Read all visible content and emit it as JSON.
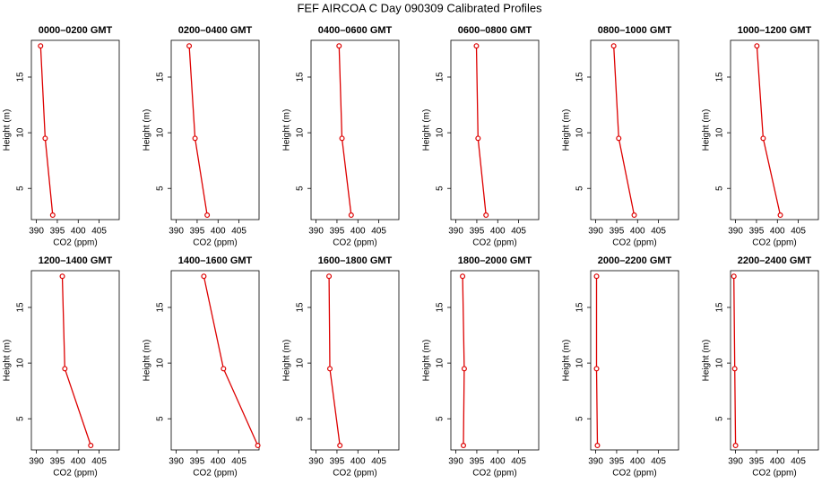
{
  "title": "FEF AIRCOA C  Day 090309  Calibrated Profiles",
  "chart_data": [
    {
      "type": "line",
      "title": "0000–0200 GMT",
      "xlabel": "CO2 (ppm)",
      "ylabel": "Height (m)",
      "color": "#dd0000",
      "x": [
        393.9,
        392.1,
        391.0
      ],
      "values": [
        2.6,
        9.5,
        17.8
      ],
      "xlim": [
        388.8,
        409.8
      ],
      "ylim": [
        2.2,
        18.3
      ],
      "xticks": [
        390,
        395,
        400,
        405
      ],
      "yticks": [
        5,
        10,
        15
      ]
    },
    {
      "type": "line",
      "title": "0200–0400 GMT",
      "xlabel": "CO2 (ppm)",
      "ylabel": "Height (m)",
      "color": "#dd0000",
      "x": [
        397.4,
        394.5,
        393.1
      ],
      "values": [
        2.6,
        9.5,
        17.8
      ],
      "xlim": [
        388.8,
        409.8
      ],
      "ylim": [
        2.2,
        18.3
      ],
      "xticks": [
        390,
        395,
        400,
        405
      ],
      "yticks": [
        5,
        10,
        15
      ]
    },
    {
      "type": "line",
      "title": "0400–0600 GMT",
      "xlabel": "CO2 (ppm)",
      "ylabel": "Height (m)",
      "color": "#dd0000",
      "x": [
        398.4,
        396.2,
        395.5
      ],
      "values": [
        2.6,
        9.5,
        17.8
      ],
      "xlim": [
        388.8,
        409.8
      ],
      "ylim": [
        2.2,
        18.3
      ],
      "xticks": [
        390,
        395,
        400,
        405
      ],
      "yticks": [
        5,
        10,
        15
      ]
    },
    {
      "type": "line",
      "title": "0600–0800 GMT",
      "xlabel": "CO2 (ppm)",
      "ylabel": "Height (m)",
      "color": "#dd0000",
      "x": [
        397.2,
        395.3,
        394.9
      ],
      "values": [
        2.6,
        9.5,
        17.8
      ],
      "xlim": [
        388.8,
        409.8
      ],
      "ylim": [
        2.2,
        18.3
      ],
      "xticks": [
        390,
        395,
        400,
        405
      ],
      "yticks": [
        5,
        10,
        15
      ]
    },
    {
      "type": "line",
      "title": "0800–1000 GMT",
      "xlabel": "CO2 (ppm)",
      "ylabel": "Height (m)",
      "color": "#dd0000",
      "x": [
        399.2,
        395.5,
        394.3
      ],
      "values": [
        2.6,
        9.5,
        17.8
      ],
      "xlim": [
        388.8,
        409.8
      ],
      "ylim": [
        2.2,
        18.3
      ],
      "xticks": [
        390,
        395,
        400,
        405
      ],
      "yticks": [
        5,
        10,
        15
      ]
    },
    {
      "type": "line",
      "title": "1000–1200 GMT",
      "xlabel": "CO2 (ppm)",
      "ylabel": "Height (m)",
      "color": "#dd0000",
      "x": [
        400.7,
        396.6,
        395.1
      ],
      "values": [
        2.6,
        9.5,
        17.8
      ],
      "xlim": [
        388.8,
        409.8
      ],
      "ylim": [
        2.2,
        18.3
      ],
      "xticks": [
        390,
        395,
        400,
        405
      ],
      "yticks": [
        5,
        10,
        15
      ]
    },
    {
      "type": "line",
      "title": "1200–1400 GMT",
      "xlabel": "CO2 (ppm)",
      "ylabel": "Height (m)",
      "color": "#dd0000",
      "x": [
        403.0,
        396.8,
        396.2
      ],
      "values": [
        2.6,
        9.5,
        17.8
      ],
      "xlim": [
        388.8,
        409.8
      ],
      "ylim": [
        2.2,
        18.3
      ],
      "xticks": [
        390,
        395,
        400,
        405
      ],
      "yticks": [
        5,
        10,
        15
      ]
    },
    {
      "type": "line",
      "title": "1400–1600 GMT",
      "xlabel": "CO2 (ppm)",
      "ylabel": "Height (m)",
      "color": "#dd0000",
      "x": [
        409.5,
        401.3,
        396.6
      ],
      "values": [
        2.6,
        9.5,
        17.8
      ],
      "xlim": [
        388.8,
        409.8
      ],
      "ylim": [
        2.2,
        18.3
      ],
      "xticks": [
        390,
        395,
        400,
        405
      ],
      "yticks": [
        5,
        10,
        15
      ]
    },
    {
      "type": "line",
      "title": "1600–1800 GMT",
      "xlabel": "CO2 (ppm)",
      "ylabel": "Height (m)",
      "color": "#dd0000",
      "x": [
        395.7,
        393.3,
        393.1
      ],
      "values": [
        2.6,
        9.5,
        17.8
      ],
      "xlim": [
        388.8,
        409.8
      ],
      "ylim": [
        2.2,
        18.3
      ],
      "xticks": [
        390,
        395,
        400,
        405
      ],
      "yticks": [
        5,
        10,
        15
      ]
    },
    {
      "type": "line",
      "title": "1800–2000 GMT",
      "xlabel": "CO2 (ppm)",
      "ylabel": "Height (m)",
      "color": "#dd0000",
      "x": [
        391.8,
        392.0,
        391.6
      ],
      "values": [
        2.6,
        9.5,
        17.8
      ],
      "xlim": [
        388.8,
        409.8
      ],
      "ylim": [
        2.2,
        18.3
      ],
      "xticks": [
        390,
        395,
        400,
        405
      ],
      "yticks": [
        5,
        10,
        15
      ]
    },
    {
      "type": "line",
      "title": "2000–2200 GMT",
      "xlabel": "CO2 (ppm)",
      "ylabel": "Height (m)",
      "color": "#dd0000",
      "x": [
        390.4,
        390.2,
        390.2
      ],
      "values": [
        2.6,
        9.5,
        17.8
      ],
      "xlim": [
        388.8,
        409.8
      ],
      "ylim": [
        2.2,
        18.3
      ],
      "xticks": [
        390,
        395,
        400,
        405
      ],
      "yticks": [
        5,
        10,
        15
      ]
    },
    {
      "type": "line",
      "title": "2200–2400 GMT",
      "xlabel": "CO2 (ppm)",
      "ylabel": "Height (m)",
      "color": "#dd0000",
      "x": [
        390.0,
        389.8,
        389.6
      ],
      "values": [
        2.6,
        9.5,
        17.8
      ],
      "xlim": [
        388.8,
        409.8
      ],
      "ylim": [
        2.2,
        18.3
      ],
      "xticks": [
        390,
        395,
        400,
        405
      ],
      "yticks": [
        5,
        10,
        15
      ]
    }
  ]
}
